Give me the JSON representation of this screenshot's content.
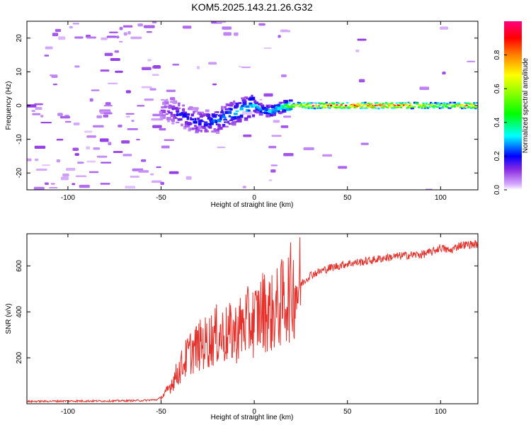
{
  "title": "KOM5.2025.143.21.26.G32",
  "chart_data": [
    {
      "type": "heatmap",
      "xlabel": "Height of straight line (km)",
      "ylabel": "Frequency (Hz)",
      "xlim": [
        -122,
        120
      ],
      "ylim": [
        -25,
        25
      ],
      "xticks": [
        -100,
        -50,
        0,
        50,
        100
      ],
      "yticks": [
        -20,
        -10,
        0,
        10,
        20
      ],
      "grid": false,
      "colorbar": {
        "label": "Normalized spectral amplitude",
        "range": [
          0,
          1
        ],
        "ticks": [
          "0.0",
          "0.2",
          "0.4",
          "0.6",
          "0.8"
        ],
        "colormap": "rainbow (violet-blue-cyan-green-yellow-red-magenta)"
      },
      "ridge": {
        "description": "Frequency ridge: scattered noise below -50 km, dispersed signal -50 to 20 km, strong narrow line near 0 Hz above 20 km",
        "x": [
          -50,
          -40,
          -30,
          -20,
          -10,
          0,
          5,
          10,
          15,
          20,
          30,
          50,
          80,
          100,
          120
        ],
        "y": [
          -1,
          -2.5,
          -5,
          -4.5,
          -2,
          0,
          -1.5,
          -1.5,
          -0.5,
          0,
          0,
          0,
          0,
          0,
          0
        ],
        "amplitude": [
          0.1,
          0.2,
          0.2,
          0.25,
          0.3,
          0.35,
          0.3,
          0.35,
          0.4,
          0.6,
          0.85,
          0.95,
          0.95,
          0.6,
          0.9
        ]
      }
    },
    {
      "type": "line",
      "xlabel": "Height of straight line (km)",
      "ylabel": "SNR (v/v)",
      "xlim": [
        -122,
        120
      ],
      "ylim": [
        0,
        740
      ],
      "xticks": [
        -100,
        -50,
        0,
        50,
        100
      ],
      "yticks": [
        200,
        400,
        600
      ],
      "grid": false,
      "series": [
        {
          "color": "#e8302a",
          "x": [
            -122,
            -100,
            -80,
            -60,
            -52,
            -48,
            -45,
            -40,
            -35,
            -30,
            -25,
            -20,
            -15,
            -10,
            -5,
            0,
            5,
            10,
            15,
            20,
            25,
            30,
            40,
            50,
            60,
            70,
            80,
            90,
            95,
            100,
            105,
            110,
            120
          ],
          "y": [
            10,
            12,
            12,
            14,
            18,
            40,
            80,
            150,
            220,
            250,
            270,
            300,
            300,
            310,
            350,
            360,
            410,
            390,
            440,
            490,
            520,
            560,
            590,
            610,
            620,
            635,
            645,
            650,
            660,
            680,
            665,
            690,
            695
          ]
        }
      ]
    }
  ]
}
